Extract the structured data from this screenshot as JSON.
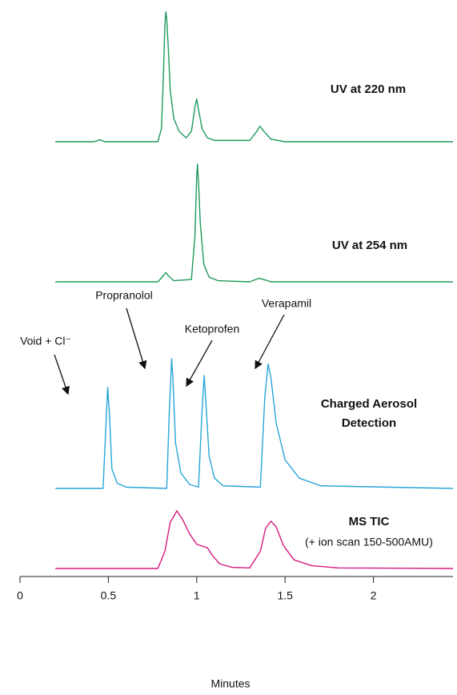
{
  "chart_data": [
    {
      "type": "line",
      "label_lines": [
        "UV at 220 nm"
      ],
      "color": "#1e9a5c",
      "ylim": [
        0,
        100
      ],
      "x": [
        0.2,
        0.42,
        0.45,
        0.48,
        0.78,
        0.8,
        0.81,
        0.82,
        0.825,
        0.83,
        0.84,
        0.85,
        0.87,
        0.9,
        0.94,
        0.97,
        0.99,
        1.0,
        1.01,
        1.03,
        1.06,
        1.1,
        1.3,
        1.34,
        1.358,
        1.38,
        1.42,
        1.5,
        2.45
      ],
      "values": [
        0,
        0,
        1.5,
        0,
        0,
        10,
        45,
        90,
        100,
        95,
        70,
        40,
        18,
        8,
        3,
        8,
        27,
        33,
        25,
        10,
        3,
        1,
        1,
        8,
        12,
        8,
        2,
        0,
        0
      ]
    },
    {
      "type": "line",
      "label_lines": [
        "UV at 254 nm"
      ],
      "color": "#1e9a5c",
      "ylim": [
        0,
        100
      ],
      "x": [
        0.2,
        0.78,
        0.81,
        0.825,
        0.84,
        0.87,
        0.97,
        0.99,
        1.0,
        1.004,
        1.01,
        1.02,
        1.04,
        1.07,
        1.12,
        1.3,
        1.35,
        1.38,
        1.42,
        2.45
      ],
      "values": [
        0,
        0,
        5,
        8,
        5,
        1,
        2,
        40,
        90,
        100,
        85,
        50,
        15,
        4,
        1,
        0,
        3,
        2,
        0,
        0
      ]
    },
    {
      "type": "line",
      "label_lines": [
        "Charged Aerosol",
        "Detection"
      ],
      "color": "#27a6d6",
      "ylim": [
        0,
        100
      ],
      "annotations": [
        "Void + Cl⁻",
        "Propranolol",
        "Ketoprofen",
        "Verapamil"
      ],
      "x": [
        0.2,
        0.47,
        0.485,
        0.496,
        0.505,
        0.52,
        0.55,
        0.6,
        0.83,
        0.845,
        0.858,
        0.865,
        0.88,
        0.91,
        0.96,
        1.01,
        1.03,
        1.042,
        1.05,
        1.07,
        1.1,
        1.15,
        1.36,
        1.385,
        1.404,
        1.42,
        1.45,
        1.5,
        1.58,
        1.7,
        2.45
      ],
      "values": [
        0,
        0,
        45,
        78,
        60,
        15,
        4,
        1,
        0,
        60,
        100,
        85,
        35,
        12,
        3,
        1,
        60,
        87,
        70,
        25,
        8,
        2,
        1,
        70,
        96,
        85,
        50,
        22,
        8,
        2,
        0
      ]
    },
    {
      "type": "line",
      "label_lines": [
        "MS TIC"
      ],
      "subtitle": "(+ ion scan 150-500AMU)",
      "color": "#d61a80",
      "ylim": [
        0,
        100
      ],
      "x": [
        0.2,
        0.78,
        0.82,
        0.85,
        0.888,
        0.92,
        0.96,
        1.0,
        1.04,
        1.06,
        1.09,
        1.13,
        1.2,
        1.3,
        1.36,
        1.39,
        1.42,
        1.45,
        1.49,
        1.55,
        1.65,
        1.8,
        2.45
      ],
      "values": [
        0,
        0,
        30,
        80,
        100,
        85,
        60,
        42,
        38,
        36,
        22,
        8,
        2,
        1,
        30,
        70,
        82,
        72,
        40,
        15,
        5,
        1,
        0
      ],
      "xlim": [
        0,
        2.45
      ],
      "xticks": [
        0,
        0.5,
        1,
        1.5,
        2
      ],
      "xlabel": "Minutes"
    }
  ]
}
